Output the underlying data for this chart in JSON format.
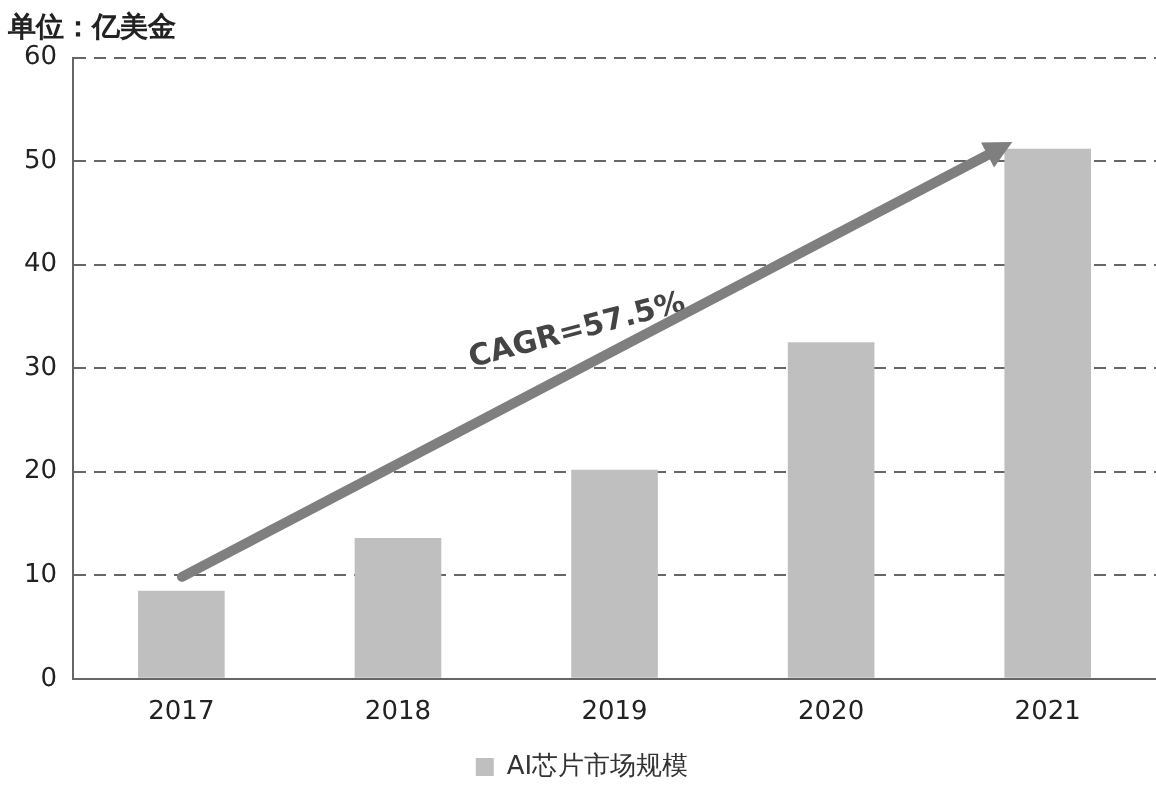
{
  "chart_data": {
    "type": "bar",
    "title": "单位：亿美金",
    "categories": [
      "2017",
      "2018",
      "2019",
      "2020",
      "2021"
    ],
    "series": [
      {
        "name": "AI芯片市场规模",
        "color": "#bfbfbf",
        "values": [
          8.5,
          13.6,
          20.2,
          32.5,
          51.2
        ]
      }
    ],
    "ylim": [
      0,
      60
    ],
    "yticks": [
      0,
      10,
      20,
      30,
      40,
      50,
      60
    ],
    "grid": "y",
    "legend": "bottom",
    "annotations": [
      "CAGR=57.5%"
    ]
  }
}
